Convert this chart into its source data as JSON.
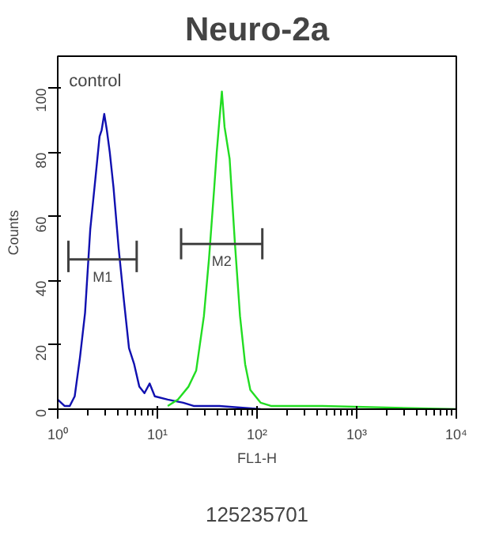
{
  "chart_data": {
    "type": "line",
    "title": "Neuro-2a",
    "xlabel": "FL1-H",
    "ylabel": "Counts",
    "log": "x",
    "xlim": [
      1,
      10000
    ],
    "ylim": [
      0,
      110
    ],
    "xticks": [
      {
        "value": 1,
        "label": "10⁰"
      },
      {
        "value": 10,
        "label": "10¹"
      },
      {
        "value": 100,
        "label": "10²"
      },
      {
        "value": 1000,
        "label": "10³"
      },
      {
        "value": 10000,
        "label": "10⁴"
      }
    ],
    "yticks": [
      0,
      20,
      40,
      60,
      80,
      100
    ],
    "grid": false,
    "series": [
      {
        "color": "#1010b0",
        "x": [
          1.0,
          1.17,
          1.32,
          1.48,
          1.67,
          1.88,
          2.12,
          2.39,
          2.63,
          2.76,
          2.93,
          3.11,
          3.33,
          3.63,
          4.09,
          4.61,
          5.19,
          5.85,
          6.59,
          7.42,
          8.36,
          9.42,
          12.7,
          18.2,
          23.1,
          41.9,
          109
        ],
        "values": [
          3,
          1,
          1,
          4,
          16,
          30,
          56,
          72,
          85,
          87,
          92,
          87,
          80,
          69,
          50,
          34,
          19,
          14,
          7,
          5,
          8,
          4,
          3,
          2,
          1,
          1,
          0
        ]
      },
      {
        "color": "#22dd22",
        "x": [
          12.7,
          16.1,
          20.5,
          24.5,
          29.3,
          33.0,
          37.2,
          39.4,
          41.9,
          44.4,
          47.2,
          53.1,
          59.9,
          67.5,
          76.0,
          85.7,
          109,
          138,
          455,
          10000
        ],
        "values": [
          1,
          3,
          7,
          12,
          29,
          47,
          69,
          80,
          90,
          99,
          88,
          78,
          52,
          29,
          14,
          6,
          2,
          1,
          1,
          0
        ]
      },
      {
        "color": "#404040",
        "x": [
          1.28,
          6.2
        ],
        "values": [
          46.7,
          46.7
        ],
        "errors": [
          [
            42.7,
            52.5
          ],
          [
            42.7,
            52.5
          ]
        ]
      },
      {
        "color": "#404040",
        "x": [
          17.3,
          113
        ],
        "values": [
          51.5,
          51.5
        ],
        "errors": [
          [
            46.7,
            56.4
          ],
          [
            46.7,
            56.4
          ]
        ]
      }
    ],
    "annotations": [
      "control",
      "125235701",
      {
        "text": "M1",
        "x": 2.82,
        "y": 46.7
      },
      {
        "text": "M2",
        "x": 44.2,
        "y": 51.5
      }
    ]
  }
}
